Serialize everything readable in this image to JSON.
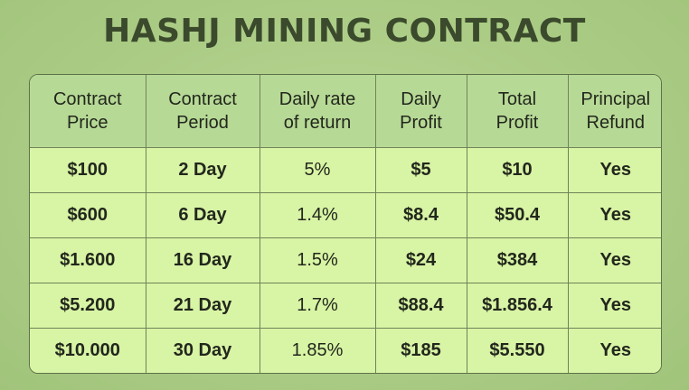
{
  "title": "HASHJ MINING CONTRACT",
  "table": {
    "headers": [
      [
        "Contract",
        "Price"
      ],
      [
        "Contract",
        "Period"
      ],
      [
        "Daily rate",
        "of return"
      ],
      [
        "Daily",
        "Profit"
      ],
      [
        "Total",
        "Profit"
      ],
      [
        "Principal",
        "Refund"
      ]
    ],
    "rows": [
      [
        "$100",
        "2 Day",
        "5%",
        "$5",
        "$10",
        "Yes"
      ],
      [
        "$600",
        "6 Day",
        "1.4%",
        "$8.4",
        "$50.4",
        "Yes"
      ],
      [
        "$1.600",
        "16 Day",
        "1.5%",
        "$24",
        "$384",
        "Yes"
      ],
      [
        "$5.200",
        "21 Day",
        "1.7%",
        "$88.4",
        "$1.856.4",
        "Yes"
      ],
      [
        "$10.000",
        "30 Day",
        "1.85%",
        "$185",
        "$5.550",
        "Yes"
      ]
    ]
  }
}
